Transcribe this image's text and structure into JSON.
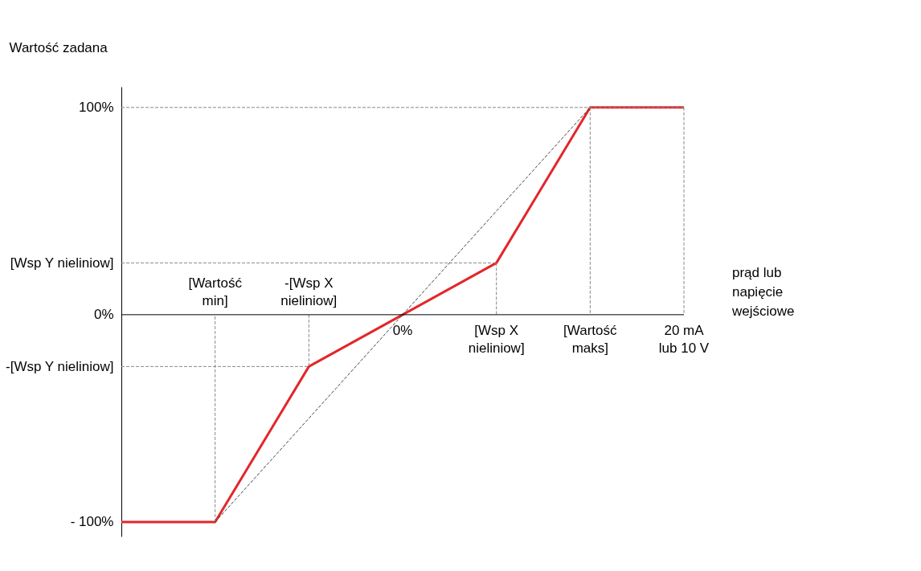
{
  "chart_data": {
    "type": "line",
    "ylabel": "Wartość zadana",
    "xlabel": "prąd lub\nnapięcie\nwejściowe",
    "categories": [
      null,
      "[Wartość\nmin]",
      "-[Wsp X\nnieliniow]",
      "0%",
      "[Wsp X\nnieliniow]",
      "[Wartość\nmaks]",
      "20 mA\nlub 10 V"
    ],
    "ylim": [
      -107,
      110
    ],
    "yticks": [
      {
        "value": 100,
        "label": "100%"
      },
      {
        "value": 25,
        "label": "[Wsp Y nieliniow]"
      },
      {
        "value": 0,
        "label": "0%"
      },
      {
        "value": -25,
        "label": "-[Wsp Y nieliniow]"
      },
      {
        "value": -100,
        "label": "- 100%"
      }
    ],
    "series": [
      {
        "color": "#888888",
        "line_style": "dashed",
        "values": [
          100,
          100,
          100,
          100,
          100,
          100,
          100
        ]
      },
      {
        "color": "#888888",
        "line_style": "dashed",
        "values": [
          25,
          25,
          25,
          25,
          25,
          null,
          null
        ]
      },
      {
        "color": "#888888",
        "line_style": "dashed",
        "values": [
          -25,
          -25,
          -25,
          null,
          null,
          null,
          null
        ]
      },
      {
        "color": "#888888",
        "line_style": "dashed",
        "x": [
          "[Wartość\nmin]",
          "[Wartość\nmin]"
        ],
        "values": [
          -100,
          0
        ]
      },
      {
        "color": "#888888",
        "line_style": "dashed",
        "x": [
          "-[Wsp X\nnieliniow]",
          "-[Wsp X\nnieliniow]"
        ],
        "values": [
          0,
          -25
        ]
      },
      {
        "color": "#888888",
        "line_style": "dashed",
        "x": [
          "[Wsp X\nnieliniow]",
          "[Wsp X\nnieliniow]"
        ],
        "values": [
          25,
          0
        ]
      },
      {
        "color": "#888888",
        "line_style": "dashed",
        "x": [
          "[Wartość\nmaks]",
          "[Wartość\nmaks]"
        ],
        "values": [
          100,
          0
        ]
      },
      {
        "color": "#888888",
        "line_style": "dashed",
        "x": [
          "20 mA\nlub 10 V",
          "20 mA\nlub 10 V"
        ],
        "values": [
          100,
          0
        ]
      },
      {
        "color": "#444444",
        "line_style": "dashed",
        "x": [
          "[Wartość\nmin]",
          "[Wartość\nmaks]"
        ],
        "values": [
          -100,
          100
        ]
      },
      {
        "color": "#e3262b",
        "line_style": "solid",
        "values": [
          -100,
          -100,
          -25,
          0,
          25,
          100,
          100
        ]
      }
    ]
  }
}
